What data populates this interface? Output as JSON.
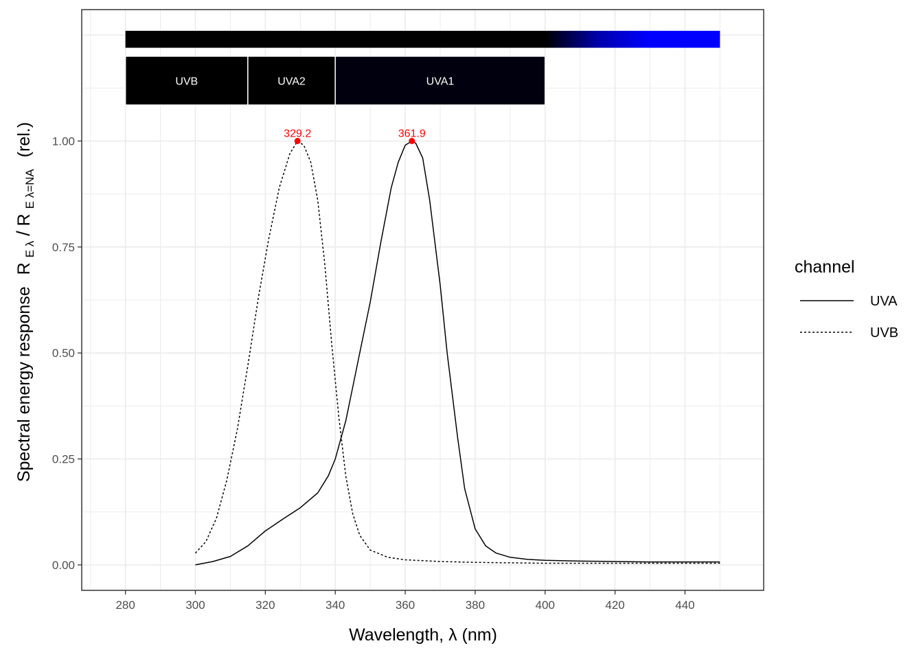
{
  "chart_data": {
    "type": "line",
    "xlabel": "Wavelength, λ (nm)",
    "ylabel": {
      "prefix": "Spectral energy response",
      "numerator": "R",
      "numerator_sub": "E λ",
      "denominator": "R",
      "denominator_sub": "E λ=NA",
      "suffix": "(rel.)"
    },
    "xlim": [
      267.5,
      462.5
    ],
    "ylim": [
      -0.06,
      1.31
    ],
    "x_ticks": [
      280,
      300,
      320,
      340,
      360,
      380,
      400,
      420,
      440
    ],
    "x_tick_labels": [
      "280",
      "300",
      "320",
      "340",
      "360",
      "380",
      "400",
      "420",
      "440"
    ],
    "y_ticks": [
      0,
      0.25,
      0.5,
      0.75,
      1.0
    ],
    "y_tick_labels": [
      "0.00",
      "0.25",
      "0.50",
      "0.75",
      "1.00"
    ],
    "grid": true,
    "legend": {
      "title": "channel",
      "position": "right",
      "entries": [
        {
          "label": "UVA",
          "linetype": "solid"
        },
        {
          "label": "UVB",
          "linetype": "dashed"
        }
      ]
    },
    "series": [
      {
        "name": "UVA",
        "linetype": "solid",
        "color": "#000000",
        "points": [
          [
            300,
            0.0
          ],
          [
            305,
            0.008
          ],
          [
            310,
            0.02
          ],
          [
            315,
            0.045
          ],
          [
            320,
            0.08
          ],
          [
            325,
            0.108
          ],
          [
            330,
            0.135
          ],
          [
            335,
            0.17
          ],
          [
            338,
            0.21
          ],
          [
            340,
            0.25
          ],
          [
            343,
            0.34
          ],
          [
            345,
            0.42
          ],
          [
            347,
            0.5
          ],
          [
            350,
            0.62
          ],
          [
            353,
            0.76
          ],
          [
            356,
            0.89
          ],
          [
            358,
            0.95
          ],
          [
            360,
            0.99
          ],
          [
            361.9,
            1.0
          ],
          [
            363,
            0.995
          ],
          [
            365,
            0.96
          ],
          [
            367,
            0.86
          ],
          [
            370,
            0.66
          ],
          [
            372,
            0.5
          ],
          [
            375,
            0.3
          ],
          [
            377,
            0.18
          ],
          [
            380,
            0.085
          ],
          [
            383,
            0.045
          ],
          [
            386,
            0.028
          ],
          [
            390,
            0.018
          ],
          [
            395,
            0.013
          ],
          [
            400,
            0.011
          ],
          [
            410,
            0.009
          ],
          [
            420,
            0.008
          ],
          [
            430,
            0.007
          ],
          [
            440,
            0.007
          ],
          [
            450,
            0.007
          ]
        ]
      },
      {
        "name": "UVB",
        "linetype": "dashed",
        "color": "#000000",
        "points": [
          [
            300,
            0.028
          ],
          [
            303,
            0.055
          ],
          [
            306,
            0.11
          ],
          [
            309,
            0.2
          ],
          [
            312,
            0.32
          ],
          [
            315,
            0.47
          ],
          [
            318,
            0.63
          ],
          [
            321,
            0.77
          ],
          [
            324,
            0.89
          ],
          [
            327,
            0.97
          ],
          [
            329.2,
            1.0
          ],
          [
            331,
            0.99
          ],
          [
            333,
            0.95
          ],
          [
            335,
            0.86
          ],
          [
            337,
            0.71
          ],
          [
            339,
            0.52
          ],
          [
            341,
            0.35
          ],
          [
            343,
            0.21
          ],
          [
            345,
            0.12
          ],
          [
            347,
            0.07
          ],
          [
            350,
            0.035
          ],
          [
            355,
            0.018
          ],
          [
            360,
            0.012
          ],
          [
            370,
            0.008
          ],
          [
            380,
            0.006
          ],
          [
            390,
            0.005
          ],
          [
            400,
            0.004
          ],
          [
            420,
            0.004
          ],
          [
            450,
            0.004
          ]
        ]
      }
    ],
    "peaks": [
      {
        "x": 329.2,
        "y": 1.0,
        "label": "329.2",
        "color": "#ff0000"
      },
      {
        "x": 361.9,
        "y": 1.0,
        "label": "361.9",
        "color": "#ff0000"
      }
    ],
    "spectrum_bar": {
      "from": 280,
      "to": 450,
      "y_range": [
        1.22,
        1.26
      ],
      "gradient": [
        {
          "nm": 400,
          "color": "#000000"
        },
        {
          "nm": 415,
          "color": "#0000aa"
        },
        {
          "nm": 430,
          "color": "#0000ff"
        }
      ]
    },
    "wavebands": [
      {
        "label": "UVB",
        "from": 280,
        "to": 315,
        "color": "#000000"
      },
      {
        "label": "UVA2",
        "from": 315,
        "to": 340,
        "color": "#000000"
      },
      {
        "label": "UVA1",
        "from": 340,
        "to": 400,
        "color": "#00000f"
      }
    ],
    "wavebands_y_range": [
      1.085,
      1.2
    ]
  }
}
